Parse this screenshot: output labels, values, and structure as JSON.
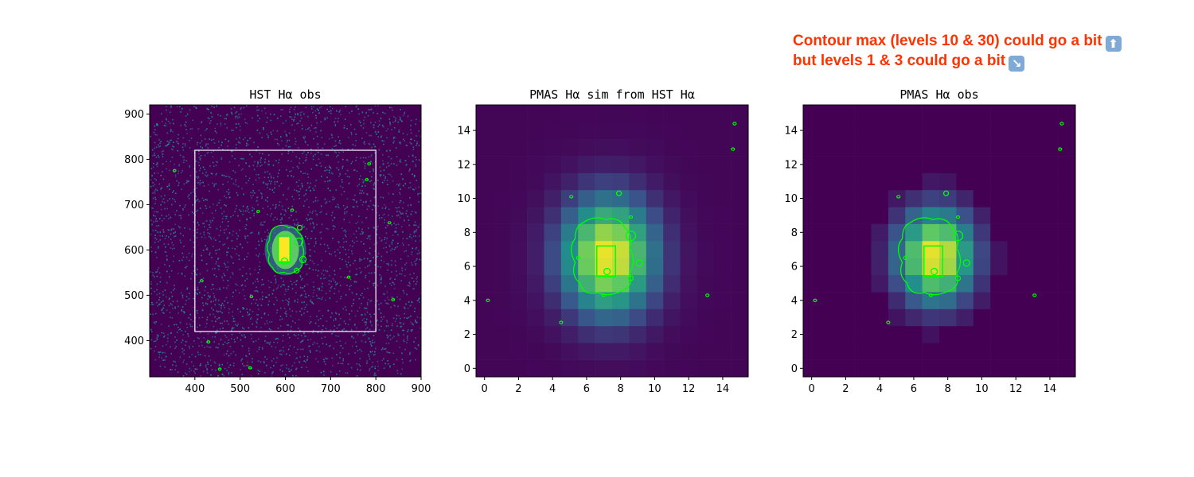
{
  "annotation": {
    "line1": "Contour max (levels 10 & 30) could go a bit",
    "line1_emoji": "up-arrow-emoji",
    "line2": "but levels 1 & 3 could go a bit",
    "line2_emoji": "down-right-arrow-emoji",
    "color": "#ff3300"
  },
  "colors": {
    "cmap": "viridis",
    "contour": "#00ff00",
    "background_image": "#440154",
    "box": "#ffffff"
  },
  "chart_data": [
    {
      "type": "heatmap",
      "title": "HST Hα obs",
      "xlim": [
        300,
        900
      ],
      "ylim": [
        320,
        920
      ],
      "xticks": [
        400,
        500,
        600,
        700,
        800,
        900
      ],
      "yticks": [
        400,
        500,
        600,
        700,
        800,
        900
      ],
      "overlay_box": {
        "x": [
          400,
          800
        ],
        "y": [
          420,
          820
        ]
      },
      "contour_levels_note": "",
      "source_centre": [
        600,
        600
      ]
    },
    {
      "type": "heatmap",
      "title": "PMAS Hα sim from HST Hα",
      "xlim": [
        -0.5,
        15.5
      ],
      "ylim": [
        -0.5,
        15.5
      ],
      "xticks": [
        0,
        2,
        4,
        6,
        8,
        10,
        12,
        14
      ],
      "yticks": [
        0,
        2,
        4,
        6,
        8,
        10,
        12,
        14
      ],
      "grid_size": 16,
      "peak": [
        7,
        6
      ]
    },
    {
      "type": "heatmap",
      "title": "PMAS Hα obs",
      "xlim": [
        -0.5,
        15.5
      ],
      "ylim": [
        -0.5,
        15.5
      ],
      "xticks": [
        0,
        2,
        4,
        6,
        8,
        10,
        12,
        14
      ],
      "yticks": [
        0,
        2,
        4,
        6,
        8,
        10,
        12,
        14
      ],
      "grid_size": 16,
      "peak": [
        7,
        6
      ]
    }
  ]
}
